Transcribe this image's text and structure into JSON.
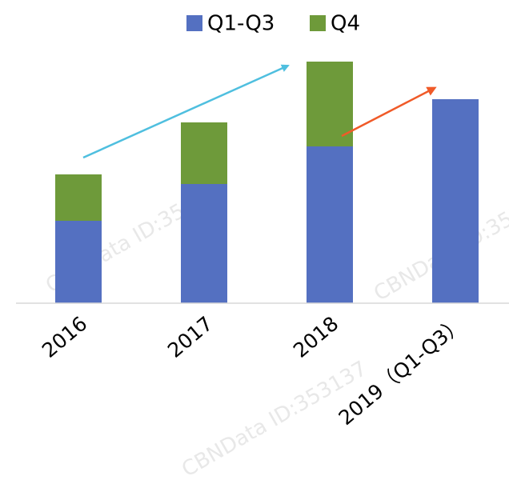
{
  "chart_data": {
    "type": "stacked_bar",
    "categories": [
      "2016",
      "2017",
      "2018",
      "2019（Q1-Q3）"
    ],
    "series": [
      {
        "name": "Q1-Q3",
        "color": "#5470c1",
        "values": [
          103,
          149,
          196,
          255
        ]
      },
      {
        "name": "Q4",
        "color": "#6e9a3a",
        "values": [
          58,
          77,
          106,
          null
        ]
      }
    ],
    "ylim": [
      0,
      300
    ],
    "legend": "top",
    "watermark": "CBNData ID:353137"
  }
}
